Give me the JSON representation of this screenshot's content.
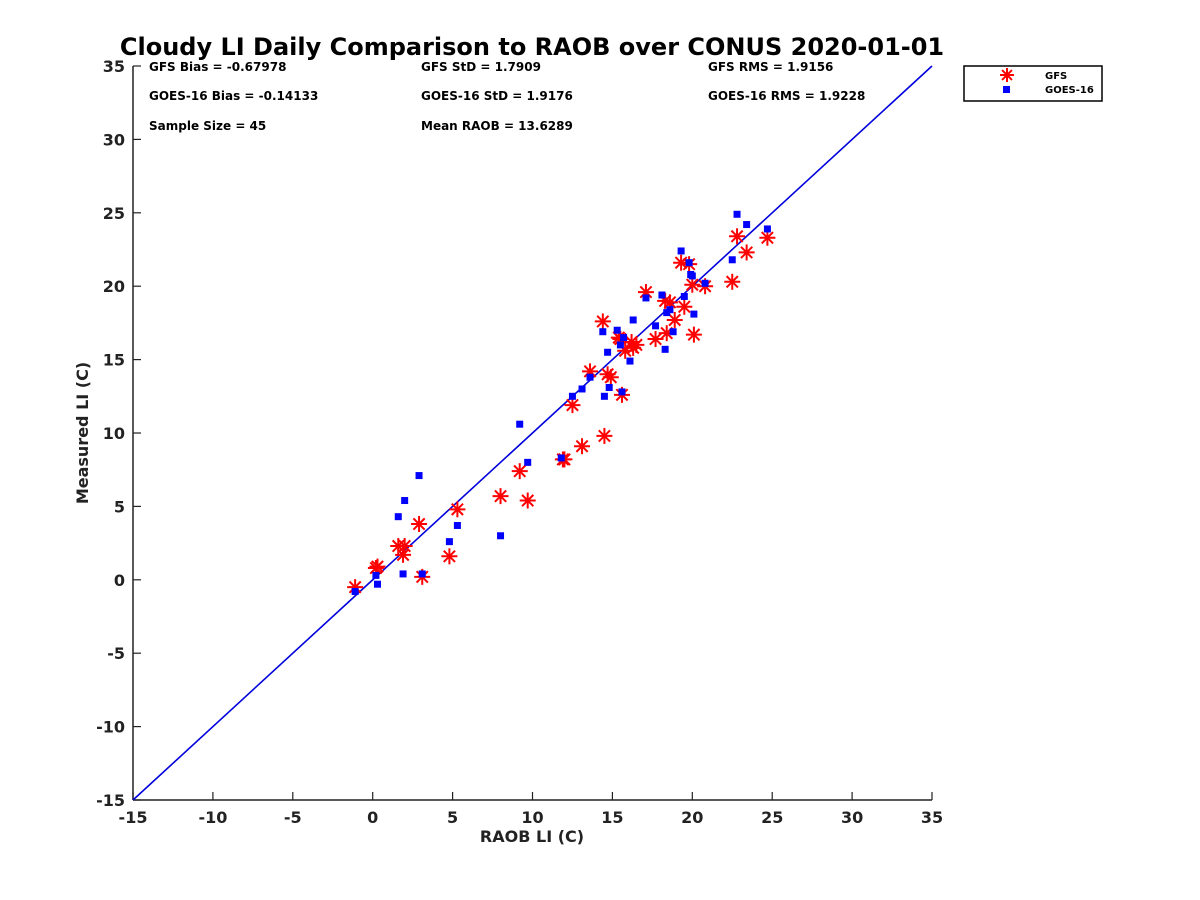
{
  "chart_data": {
    "type": "scatter",
    "title": "Cloudy LI Daily Comparison to RAOB over CONUS 2020-01-01",
    "xlabel": "RAOB LI (C)",
    "ylabel": "Measured LI (C)",
    "xlim": [
      -15,
      35
    ],
    "ylim": [
      -15,
      35
    ],
    "xticks": [
      "-15",
      "-10",
      "-5",
      "0",
      "5",
      "10",
      "15",
      "20",
      "25",
      "30",
      "35"
    ],
    "yticks": [
      "-15",
      "-10",
      "-5",
      "0",
      "5",
      "10",
      "15",
      "20",
      "25",
      "30",
      "35"
    ],
    "grid": false,
    "legend_position": "top-right, outside plot",
    "reference_line": {
      "type": "one-to-one",
      "color": "#0000dd"
    },
    "stats": [
      {
        "key": "gfs_bias",
        "text": "GFS Bias = -0.67978"
      },
      {
        "key": "gfs_std",
        "text": "GFS StD = 1.7909"
      },
      {
        "key": "gfs_rms",
        "text": "GFS RMS = 1.9156"
      },
      {
        "key": "goes_bias",
        "text": "GOES-16 Bias = -0.14133"
      },
      {
        "key": "goes_std",
        "text": "GOES-16 StD = 1.9176"
      },
      {
        "key": "goes_rms",
        "text": "GOES-16 RMS = 1.9228"
      },
      {
        "key": "sample_size",
        "text": "Sample Size = 45"
      },
      {
        "key": "mean_raob",
        "text": "Mean RAOB = 13.6289"
      }
    ],
    "series": [
      {
        "name": "GFS",
        "marker": "asterisk",
        "color": "#ff0000",
        "x": [
          -1.1,
          0.2,
          0.3,
          1.6,
          1.9,
          2.0,
          2.9,
          3.1,
          4.8,
          5.3,
          8.0,
          9.2,
          9.7,
          11.9,
          12.5,
          13.1,
          13.6,
          14.4,
          14.5,
          14.7,
          14.9,
          15.4,
          15.6,
          15.8,
          16.2,
          16.3,
          17.1,
          17.7,
          18.3,
          18.4,
          18.6,
          18.9,
          19.3,
          19.5,
          19.8,
          20.0,
          20.1,
          20.8,
          22.5,
          22.8,
          23.4,
          24.7,
          12.0,
          16.5,
          15.5
        ],
        "y": [
          -0.5,
          0.8,
          0.9,
          2.3,
          1.7,
          2.3,
          3.8,
          0.2,
          1.6,
          4.8,
          5.7,
          7.4,
          5.4,
          8.2,
          11.9,
          9.1,
          14.2,
          17.6,
          9.8,
          14.0,
          13.8,
          16.5,
          12.6,
          15.6,
          16.2,
          15.8,
          19.6,
          16.4,
          19.0,
          16.8,
          18.9,
          17.7,
          21.6,
          18.6,
          21.5,
          20.1,
          16.7,
          20.0,
          20.3,
          23.4,
          22.3,
          23.3,
          8.2,
          16.0,
          16.4
        ]
      },
      {
        "name": "GOES-16",
        "marker": "square",
        "color": "#0000ff",
        "x": [
          -1.1,
          0.2,
          0.3,
          1.6,
          1.9,
          2.0,
          2.9,
          3.1,
          4.8,
          5.3,
          8.0,
          9.2,
          9.7,
          11.8,
          12.5,
          13.1,
          13.6,
          14.4,
          14.5,
          14.7,
          14.8,
          15.3,
          15.6,
          15.7,
          16.1,
          16.3,
          17.1,
          17.7,
          18.1,
          18.3,
          18.4,
          18.6,
          18.8,
          19.3,
          19.5,
          19.8,
          19.9,
          20.0,
          20.1,
          20.8,
          22.5,
          22.8,
          23.4,
          24.7,
          15.5
        ],
        "y": [
          -0.8,
          0.3,
          -0.3,
          4.3,
          0.4,
          5.4,
          7.1,
          0.4,
          2.6,
          3.7,
          3.0,
          10.6,
          8.0,
          8.3,
          12.5,
          13.0,
          13.8,
          16.9,
          12.5,
          15.5,
          13.1,
          17.0,
          12.8,
          16.5,
          14.9,
          17.7,
          19.2,
          17.3,
          19.4,
          15.7,
          18.2,
          18.4,
          16.9,
          22.4,
          19.3,
          21.6,
          20.8,
          20.7,
          18.1,
          20.2,
          21.8,
          24.9,
          24.2,
          23.9,
          16.0
        ]
      }
    ]
  }
}
